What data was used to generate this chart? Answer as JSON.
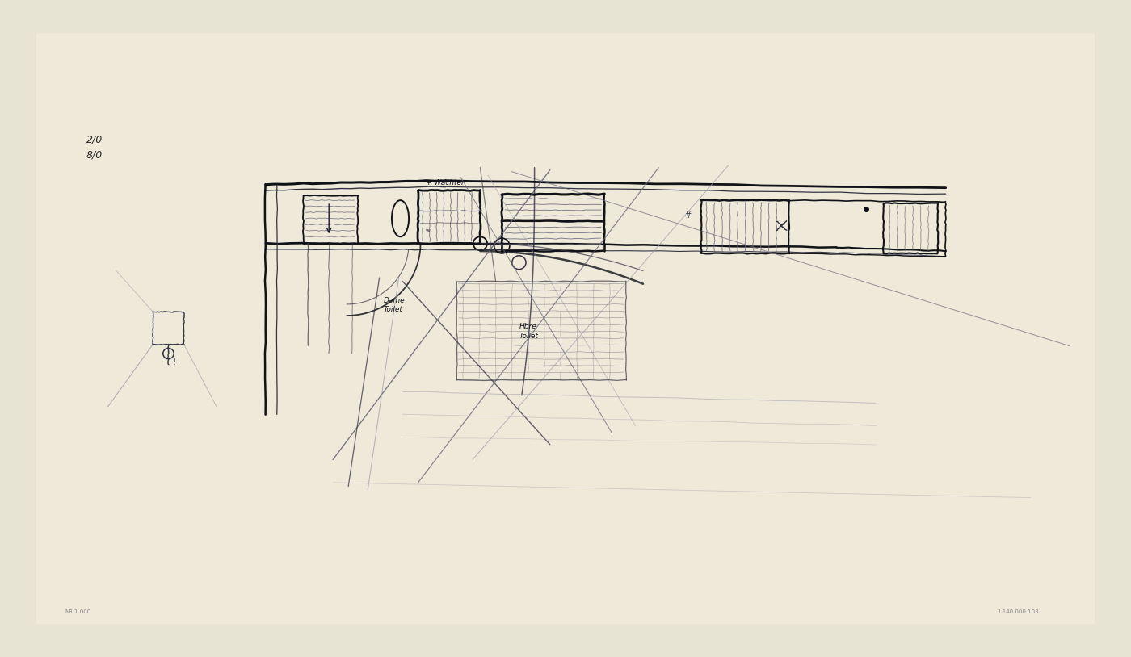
{
  "bg_outer": "#e8e4d4",
  "bg_paper": "#eee9d8",
  "sketch_color": "#1a1a2e",
  "sketch_dark": "#111118",
  "sketch_mid": "#333344",
  "sketch_light": "#666677",
  "sketch_vlight": "#999aaa",
  "title_line1": "2/0",
  "title_line2": "8/0",
  "label_dame": "Dame\nToilet",
  "label_heren": "Hbre\nToilet",
  "label_wachter": "+ Wachter",
  "bottom_left": "NR.1.000",
  "bottom_right": "1.140.000.103"
}
